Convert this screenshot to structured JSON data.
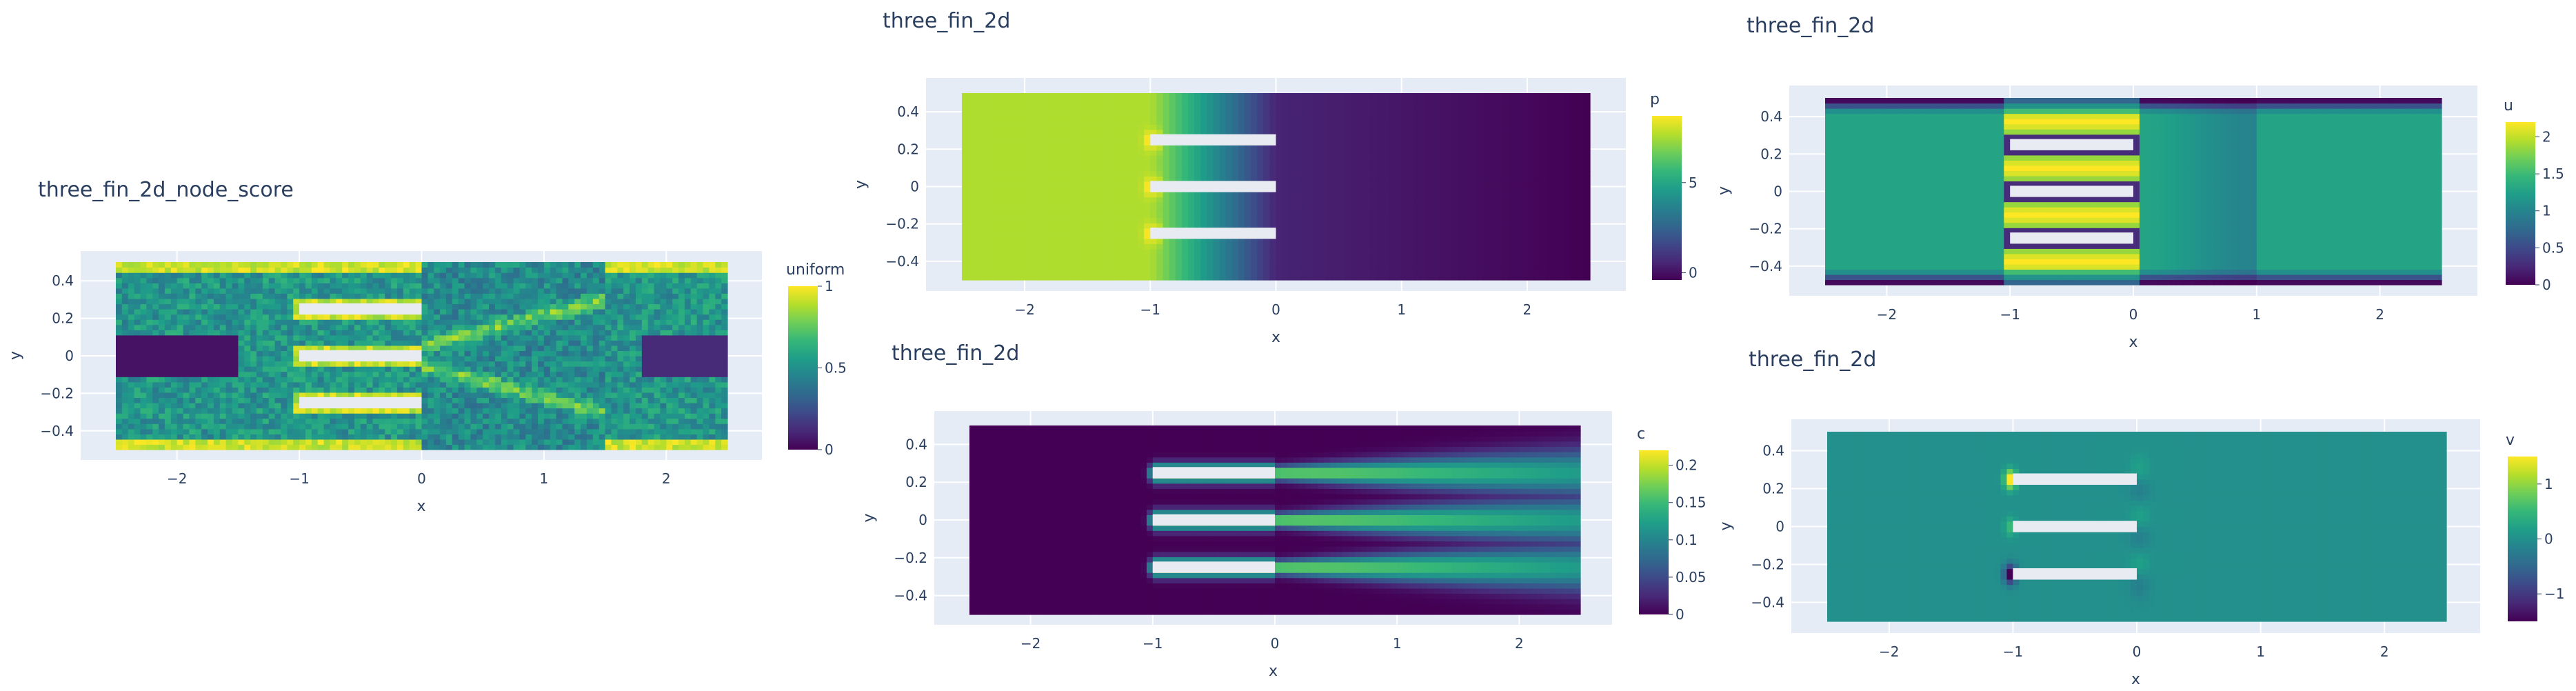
{
  "colors": {
    "plot_bg": "#e5ecf6",
    "grid": "#ffffff",
    "font": "#2a3f5f",
    "fin": "#e8ecf2",
    "viridis": [
      "#440154",
      "#482878",
      "#3e4989",
      "#31688e",
      "#26828e",
      "#1f9e89",
      "#35b779",
      "#6ece58",
      "#b5de2b",
      "#fde725"
    ]
  },
  "chart_data": [
    {
      "type": "heatmap",
      "title": "three_fin_2d_node_score",
      "xlabel": "x",
      "ylabel": "y",
      "xlim": [
        -2.5,
        2.5
      ],
      "ylim": [
        -0.5,
        0.5
      ],
      "x_ticks": [
        -2,
        -1,
        0,
        1,
        2
      ],
      "x_tick_labels": [
        "−2",
        "−1",
        "0",
        "1",
        "2"
      ],
      "y_ticks": [
        -0.4,
        -0.2,
        0,
        0.2,
        0.4
      ],
      "y_tick_labels": [
        "−0.4",
        "−0.2",
        "0",
        "0.2",
        "0.4"
      ],
      "colorbar": {
        "title": "uniform",
        "range": [
          0,
          1
        ],
        "ticks": [
          0,
          0.5,
          1
        ],
        "tick_labels": [
          "0",
          "0.5",
          "1"
        ]
      },
      "colorscale": "Viridis",
      "fins": {
        "x_range": [
          -1,
          0
        ],
        "y_centers": [
          -0.25,
          0,
          0.25
        ],
        "height": 0.06
      },
      "field": "node_score"
    },
    {
      "type": "heatmap",
      "title": "three_fin_2d",
      "xlabel": "x",
      "ylabel": "y",
      "xlim": [
        -2.5,
        2.5
      ],
      "ylim": [
        -0.5,
        0.5
      ],
      "x_ticks": [
        -2,
        -1,
        0,
        1,
        2
      ],
      "x_tick_labels": [
        "−2",
        "−1",
        "0",
        "1",
        "2"
      ],
      "y_ticks": [
        -0.4,
        -0.2,
        0,
        0.2,
        0.4
      ],
      "y_tick_labels": [
        "−0.4",
        "−0.2",
        "0",
        "0.2",
        "0.4"
      ],
      "colorbar": {
        "title": "p",
        "range": [
          -0.4,
          8.7
        ],
        "ticks": [
          0,
          5
        ],
        "tick_labels": [
          "0",
          "5"
        ]
      },
      "colorscale": "Viridis",
      "fins": {
        "x_range": [
          -1,
          0
        ],
        "y_centers": [
          -0.25,
          0,
          0.25
        ],
        "height": 0.06
      },
      "field": "p"
    },
    {
      "type": "heatmap",
      "title": "three_fin_2d",
      "xlabel": "x",
      "ylabel": "y",
      "xlim": [
        -2.5,
        2.5
      ],
      "ylim": [
        -0.5,
        0.5
      ],
      "x_ticks": [
        -2,
        -1,
        0,
        1,
        2
      ],
      "x_tick_labels": [
        "−2",
        "−1",
        "0",
        "1",
        "2"
      ],
      "y_ticks": [
        -0.4,
        -0.2,
        0,
        0.2,
        0.4
      ],
      "y_tick_labels": [
        "−0.4",
        "−0.2",
        "0",
        "0.2",
        "0.4"
      ],
      "colorbar": {
        "title": "u",
        "range": [
          0,
          2.2
        ],
        "ticks": [
          0,
          0.5,
          1,
          1.5,
          2
        ],
        "tick_labels": [
          "0",
          "0.5",
          "1",
          "1.5",
          "2"
        ]
      },
      "colorscale": "Viridis",
      "fins": {
        "x_range": [
          -1,
          0
        ],
        "y_centers": [
          -0.25,
          0,
          0.25
        ],
        "height": 0.06
      },
      "field": "u"
    },
    {
      "type": "heatmap",
      "title": "three_fin_2d",
      "xlabel": "x",
      "ylabel": "y",
      "xlim": [
        -2.5,
        2.5
      ],
      "ylim": [
        -0.5,
        0.5
      ],
      "x_ticks": [
        -2,
        -1,
        0,
        1,
        2
      ],
      "x_tick_labels": [
        "−2",
        "−1",
        "0",
        "1",
        "2"
      ],
      "y_ticks": [
        -0.4,
        -0.2,
        0,
        0.2,
        0.4
      ],
      "y_tick_labels": [
        "−0.4",
        "−0.2",
        "0",
        "0.2",
        "0.4"
      ],
      "colorbar": {
        "title": "c",
        "range": [
          0,
          0.22
        ],
        "ticks": [
          0,
          0.05,
          0.1,
          0.15,
          0.2
        ],
        "tick_labels": [
          "0",
          "0.05",
          "0.1",
          "0.15",
          "0.2"
        ]
      },
      "colorscale": "Viridis",
      "fins": {
        "x_range": [
          -1,
          0
        ],
        "y_centers": [
          -0.25,
          0,
          0.25
        ],
        "height": 0.06
      },
      "field": "c"
    },
    {
      "type": "heatmap",
      "title": "three_fin_2d",
      "xlabel": "x",
      "ylabel": "y",
      "xlim": [
        -2.5,
        2.5
      ],
      "ylim": [
        -0.5,
        0.5
      ],
      "x_ticks": [
        -2,
        -1,
        0,
        1,
        2
      ],
      "x_tick_labels": [
        "−2",
        "−1",
        "0",
        "1",
        "2"
      ],
      "y_ticks": [
        -0.4,
        -0.2,
        0,
        0.2,
        0.4
      ],
      "y_tick_labels": [
        "−0.4",
        "−0.2",
        "0",
        "0.2",
        "0.4"
      ],
      "colorbar": {
        "title": "v",
        "range": [
          -1.5,
          1.5
        ],
        "ticks": [
          -1,
          0,
          1
        ],
        "tick_labels": [
          "−1",
          "0",
          "1"
        ]
      },
      "colorscale": "Viridis",
      "fins": {
        "x_range": [
          -1,
          0
        ],
        "y_centers": [
          -0.25,
          0,
          0.25
        ],
        "height": 0.06
      },
      "field": "v"
    }
  ]
}
